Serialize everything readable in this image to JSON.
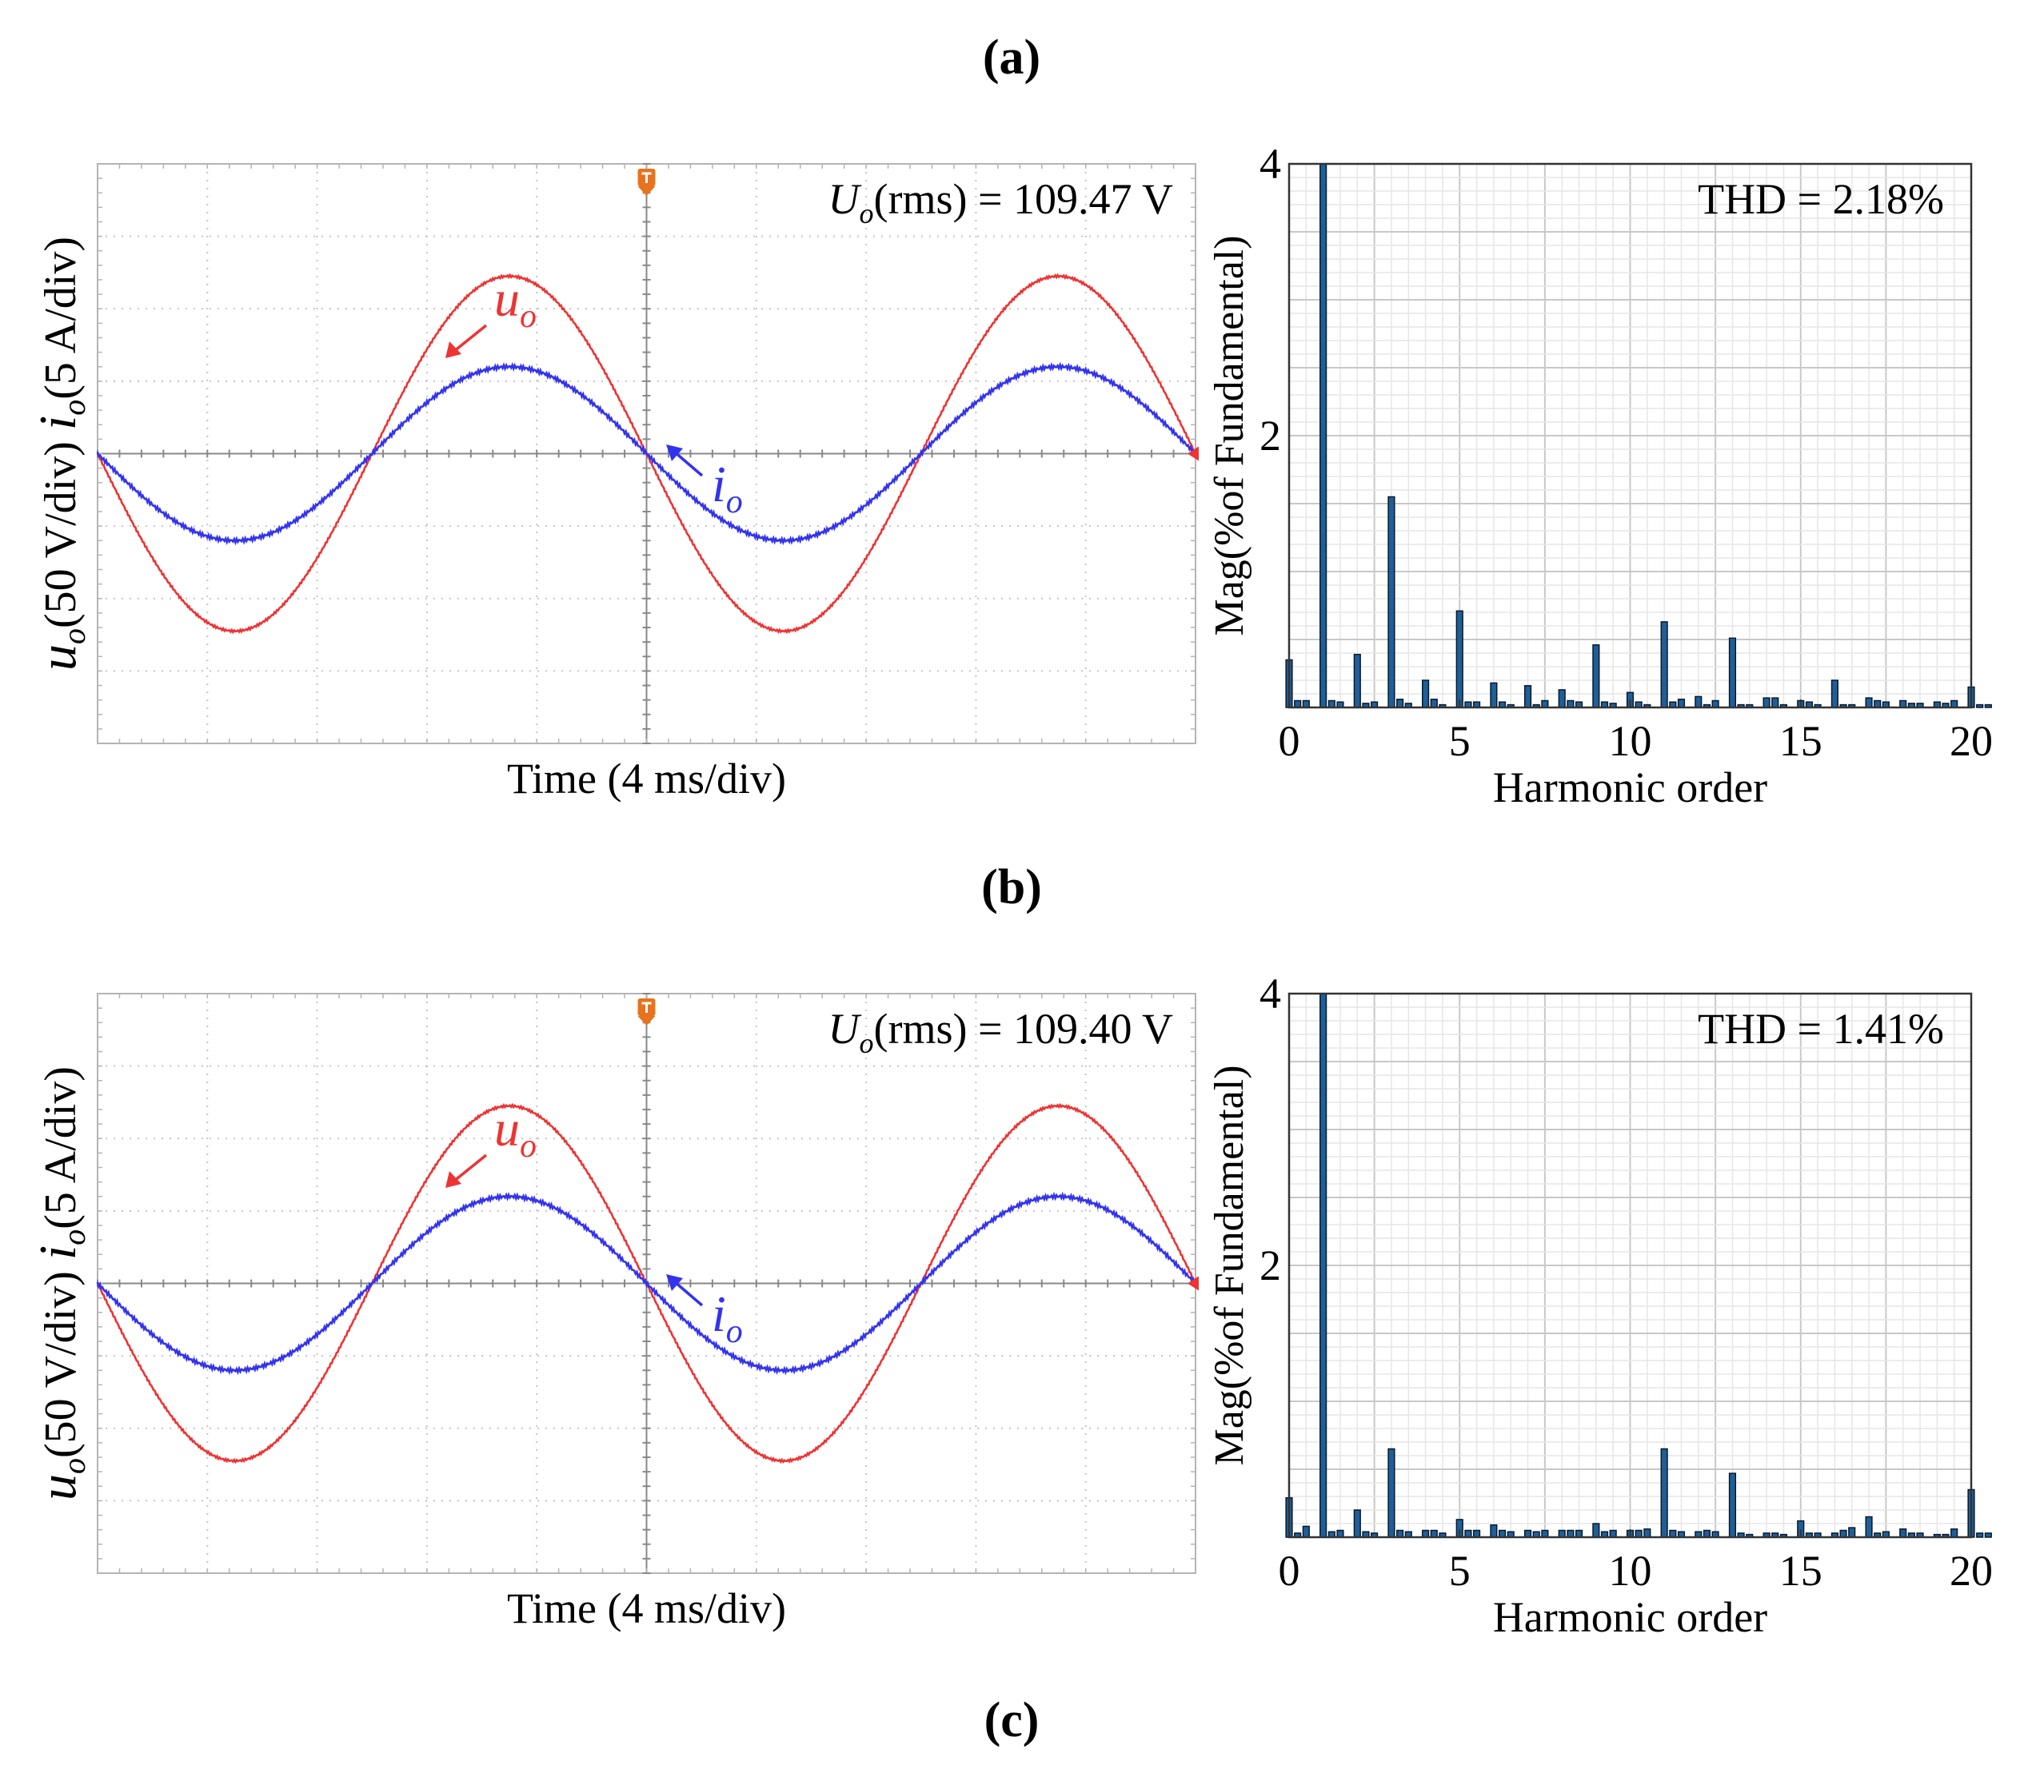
{
  "panel_labels": [
    "(a)",
    "(b)",
    "(c)"
  ],
  "colors": {
    "voltage": "#ee3333",
    "current": "#3333ee",
    "bar": "#1f5f99",
    "bar_edge": "#0a1a2a",
    "grid_major": "#c8c8c8",
    "grid_minor": "#e6e6e6",
    "scope_center": "#888888",
    "trigger": "#e8731c",
    "text": "#000000"
  },
  "chart_data": [
    {
      "type": "line",
      "id": "scope-a",
      "xlabel": "Time (4 ms/div)",
      "ylabel_voltage": {
        "symbol": "u",
        "sub": "o",
        "rest": "(50 V/div)"
      },
      "ylabel_current": {
        "symbol": "i",
        "sub": "o",
        "rest": "(5 A/div)"
      },
      "annotation": {
        "symbol": "U",
        "sub": "o",
        "rest": "(rms) = 109.47 V"
      },
      "arrow_voltage": {
        "symbol": "u",
        "sub": "o"
      },
      "arrow_current": {
        "symbol": "i",
        "sub": "o"
      },
      "x_divisions": 10,
      "y_divisions": 8,
      "frequency_hz": 50,
      "time_per_div_ms": 4,
      "series": [
        {
          "name": "u_o",
          "unit_per_div": 50,
          "peak_divisions": 2.45,
          "phase": "sine-negative-start"
        },
        {
          "name": "i_o",
          "unit_per_div": 5,
          "peak_divisions": 1.2,
          "phase": "sine-negative-start"
        }
      ]
    },
    {
      "type": "bar",
      "id": "fft-a",
      "title": "THD = 2.18%",
      "xlabel": "Harmonic order",
      "ylabel": "Mag(%of Fundamental)",
      "xlim": [
        0,
        20
      ],
      "ylim": [
        0,
        4
      ],
      "xticks": [
        "0",
        "5",
        "10",
        "15",
        "20"
      ],
      "yticks": [
        "2",
        "4"
      ],
      "bars_per_order": 4,
      "values": [
        0.35,
        0.05,
        0.05,
        0.0,
        4.0,
        0.05,
        0.04,
        0.0,
        0.39,
        0.03,
        0.04,
        0.0,
        1.55,
        0.06,
        0.03,
        0.0,
        0.2,
        0.06,
        0.02,
        0.0,
        0.71,
        0.04,
        0.04,
        0.0,
        0.18,
        0.04,
        0.02,
        0.0,
        0.16,
        0.02,
        0.05,
        0.0,
        0.13,
        0.05,
        0.04,
        0.0,
        0.46,
        0.04,
        0.03,
        0.0,
        0.11,
        0.04,
        0.02,
        0.0,
        0.63,
        0.04,
        0.06,
        0.0,
        0.08,
        0.02,
        0.05,
        0.0,
        0.51,
        0.02,
        0.02,
        0.0,
        0.07,
        0.07,
        0.02,
        0.0,
        0.05,
        0.04,
        0.02,
        0.0,
        0.2,
        0.02,
        0.02,
        0.0,
        0.07,
        0.05,
        0.04,
        0.0,
        0.05,
        0.03,
        0.03,
        0.0,
        0.04,
        0.03,
        0.05,
        0.0,
        0.15,
        0.02,
        0.02,
        0.0
      ]
    },
    {
      "type": "line",
      "id": "scope-b",
      "xlabel": "Time (4 ms/div)",
      "ylabel_voltage": {
        "symbol": "u",
        "sub": "o",
        "rest": "(50 V/div)"
      },
      "ylabel_current": {
        "symbol": "i",
        "sub": "o",
        "rest": "(5 A/div)"
      },
      "annotation": {
        "symbol": "U",
        "sub": "o",
        "rest": "(rms) = 109.40 V"
      },
      "arrow_voltage": {
        "symbol": "u",
        "sub": "o"
      },
      "arrow_current": {
        "symbol": "i",
        "sub": "o"
      },
      "x_divisions": 10,
      "y_divisions": 8,
      "frequency_hz": 50,
      "time_per_div_ms": 4,
      "series": [
        {
          "name": "u_o",
          "unit_per_div": 50,
          "peak_divisions": 2.45,
          "phase": "sine-negative-start"
        },
        {
          "name": "i_o",
          "unit_per_div": 5,
          "peak_divisions": 1.2,
          "phase": "sine-negative-start"
        }
      ]
    },
    {
      "type": "bar",
      "id": "fft-b",
      "title": "THD = 1.41%",
      "xlabel": "Harmonic order",
      "ylabel": "Mag(%of Fundamental)",
      "xlim": [
        0,
        20
      ],
      "ylim": [
        0,
        4
      ],
      "xticks": [
        "0",
        "5",
        "10",
        "15",
        "20"
      ],
      "yticks": [
        "2",
        "4"
      ],
      "bars_per_order": 4,
      "values": [
        0.29,
        0.03,
        0.08,
        0.0,
        4.0,
        0.04,
        0.05,
        0.0,
        0.2,
        0.04,
        0.03,
        0.0,
        0.65,
        0.05,
        0.04,
        0.0,
        0.05,
        0.05,
        0.03,
        0.0,
        0.13,
        0.05,
        0.05,
        0.0,
        0.09,
        0.05,
        0.04,
        0.0,
        0.05,
        0.04,
        0.05,
        0.0,
        0.05,
        0.05,
        0.05,
        0.0,
        0.1,
        0.04,
        0.05,
        0.0,
        0.05,
        0.05,
        0.06,
        0.0,
        0.65,
        0.05,
        0.04,
        0.0,
        0.04,
        0.05,
        0.04,
        0.0,
        0.47,
        0.03,
        0.02,
        0.0,
        0.03,
        0.03,
        0.02,
        0.0,
        0.12,
        0.03,
        0.03,
        0.0,
        0.03,
        0.05,
        0.07,
        0.0,
        0.15,
        0.03,
        0.04,
        0.0,
        0.06,
        0.03,
        0.03,
        0.0,
        0.02,
        0.02,
        0.06,
        0.0,
        0.35,
        0.03,
        0.03,
        0.0
      ]
    }
  ]
}
